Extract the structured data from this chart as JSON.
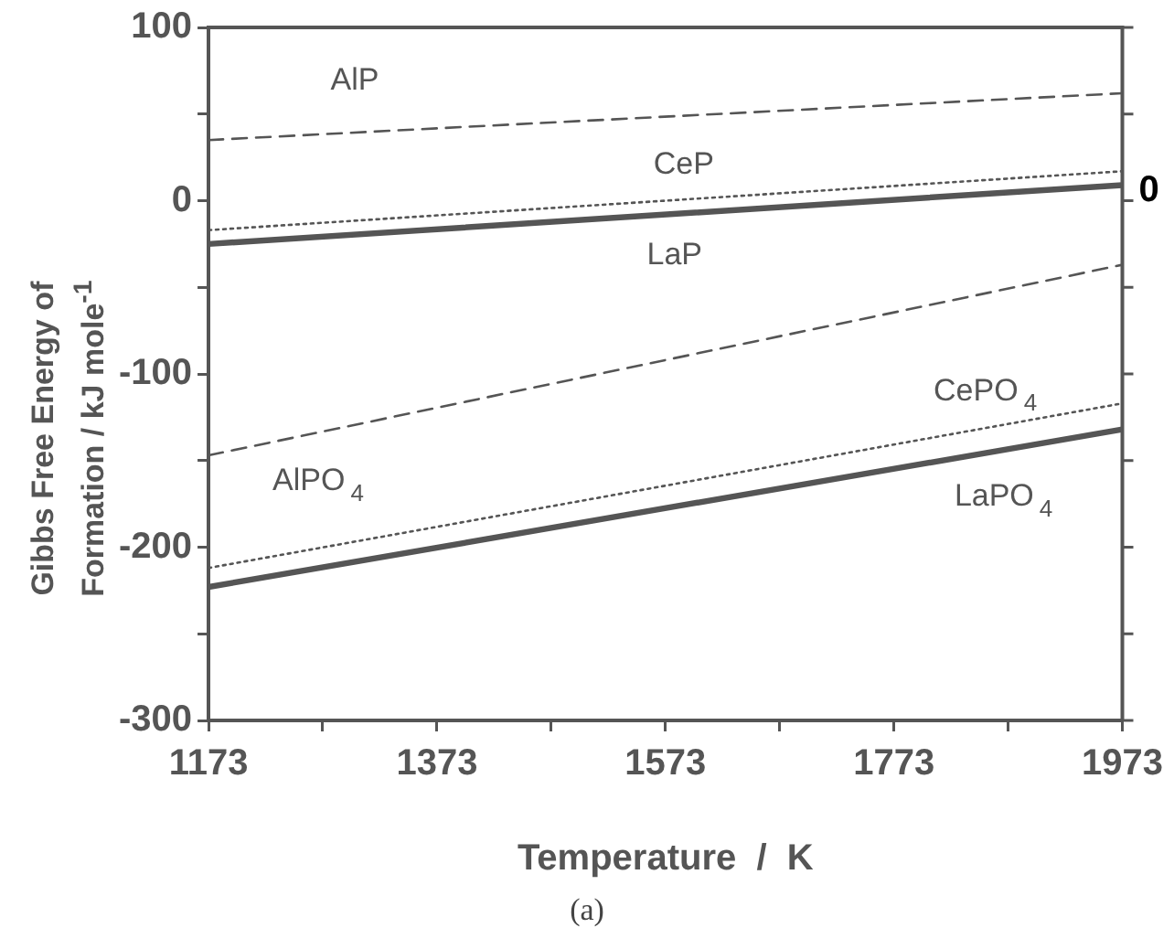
{
  "chart_data": {
    "type": "line",
    "xlabel": "Temperature  /  K",
    "ylabel": "Gibbs Free Energy of\nFormation / kJ mole$^{-1}$",
    "x": [
      1173,
      1973
    ],
    "xlim": [
      1173,
      1973
    ],
    "xticks": [
      1173,
      {
        "value": 1273,
        "label": null
      },
      1373,
      {
        "value": 1473,
        "label": null
      },
      1573,
      {
        "value": 1673,
        "label": null
      },
      1773,
      {
        "value": 1873,
        "label": null
      },
      1973
    ],
    "ylim": [
      -300,
      100
    ],
    "yticks": [
      -300,
      {
        "value": -250,
        "label": null
      },
      -200,
      {
        "value": -150,
        "label": null
      },
      -100,
      {
        "value": -50,
        "label": null
      },
      0,
      {
        "value": 50,
        "label": null
      },
      100
    ],
    "grid": false,
    "legend": false,
    "marker": "none",
    "series": [
      {
        "name": "AlP",
        "color": "#555555",
        "values": [
          35,
          62
        ],
        "line_style": "dashed"
      },
      {
        "name": "CeP",
        "color": "#555555",
        "values": [
          -17,
          17
        ],
        "line_style": "dotted"
      },
      {
        "name": "LaP",
        "color": "#555555",
        "values": [
          -25,
          9
        ],
        "line_style": "solid"
      },
      {
        "name": "AlPO$_{4}$",
        "color": "#555555",
        "values": [
          -147,
          -37
        ],
        "line_style": "dashed"
      },
      {
        "name": "CePO$_{4}$",
        "color": "#555555",
        "values": [
          -212,
          -117
        ],
        "line_style": "dotted"
      },
      {
        "name": "LaPO$_{4}$",
        "color": "#555555",
        "values": [
          -223,
          -132
        ],
        "line_style": "solid"
      }
    ],
    "annotations": [
      "0",
      "(a)"
    ]
  }
}
